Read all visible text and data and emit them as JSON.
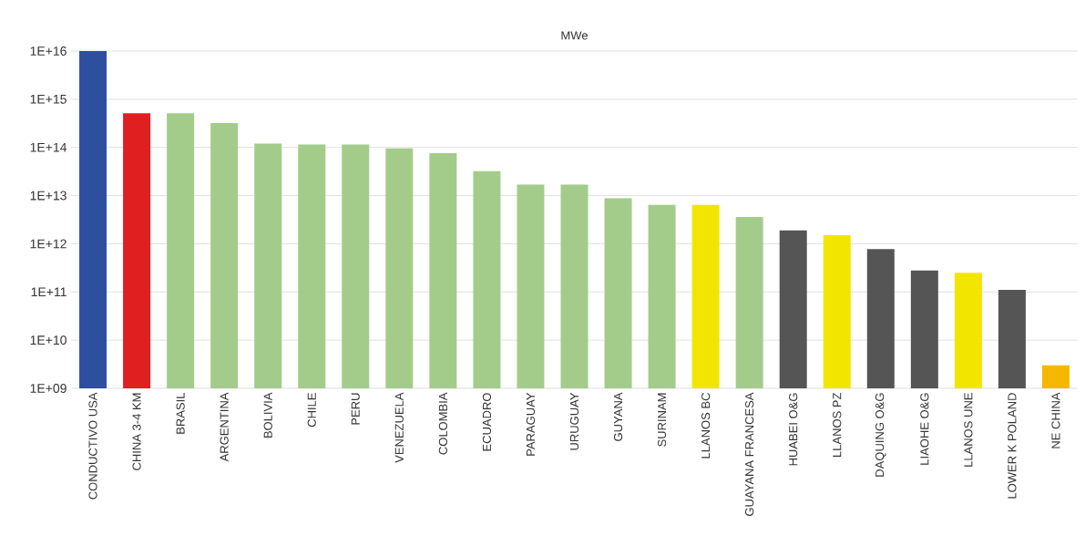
{
  "chart_data": {
    "type": "bar",
    "title": "MWe",
    "categories": [
      "CONDUCTIVO USA",
      "CHINA 3-4 KM",
      "BRASIL",
      "ARGENTINA",
      "BOLIVIA",
      "CHILE",
      "PERU",
      "VENEZUELA",
      "COLOMBIA",
      "ECUADRO",
      "PARAGUAY",
      "URUGUAY",
      "GUYANA",
      "SURINAM",
      "LLANOS BC",
      "GUAYANA FRANCESA",
      "HUABEI O&G",
      "LLANOS PZ",
      "DAQUING O&G",
      "LIAOHE O&G",
      "LLANOS UNE",
      "LOWER K POLAND",
      "NE CHINA"
    ],
    "values": [
      1e+16,
      510000000000000.0,
      510000000000000.0,
      320000000000000.0,
      120000000000000.0,
      115000000000000.0,
      115000000000000.0,
      96000000000000.0,
      76000000000000.0,
      32000000000000.0,
      17000000000000.0,
      17000000000000.0,
      8800000000000.0,
      6400000000000.0,
      6400000000000.0,
      3600000000000.0,
      1900000000000.0,
      1500000000000.0,
      780000000000.0,
      280000000000.0,
      250000000000.0,
      110000000000.0,
      3000000000.0
    ],
    "colors": [
      "#2e4fa0",
      "#e02020",
      "#a3cc8a",
      "#a3cc8a",
      "#a3cc8a",
      "#a3cc8a",
      "#a3cc8a",
      "#a3cc8a",
      "#a3cc8a",
      "#a3cc8a",
      "#a3cc8a",
      "#a3cc8a",
      "#a3cc8a",
      "#a3cc8a",
      "#f2e600",
      "#a3cc8a",
      "#555555",
      "#f2e600",
      "#555555",
      "#555555",
      "#f2e600",
      "#555555",
      "#f5b800"
    ],
    "log": "y",
    "grid": "y",
    "ylim": [
      1000000000.0,
      1e+16
    ],
    "yticks": [
      {
        "value": 1000000000.0,
        "label": "1E+09"
      },
      {
        "value": 10000000000.0,
        "label": "1E+10"
      },
      {
        "value": 100000000000.0,
        "label": "1E+11"
      },
      {
        "value": 1000000000000.0,
        "label": "1E+12"
      },
      {
        "value": 10000000000000.0,
        "label": "1E+13"
      },
      {
        "value": 100000000000000.0,
        "label": "1E+14"
      },
      {
        "value": 1000000000000000.0,
        "label": "1E+15"
      },
      {
        "value": 1e+16,
        "label": "1E+16"
      }
    ]
  }
}
